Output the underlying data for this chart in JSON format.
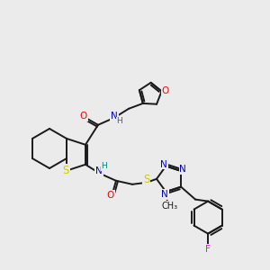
{
  "bg_color": "#ebebeb",
  "bond_color": "#1a1a1a",
  "atom_colors": {
    "O": "#ff0000",
    "N": "#0000cc",
    "S": "#cccc00",
    "F": "#ff00ff",
    "H": "#008080",
    "C": "#1a1a1a"
  },
  "font_size": 7.5,
  "figsize": [
    3.0,
    3.0
  ],
  "dpi": 100
}
